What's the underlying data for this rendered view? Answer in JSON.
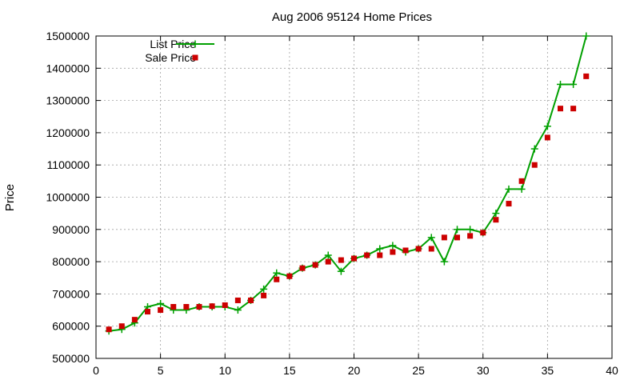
{
  "chart_data": {
    "type": "line",
    "title": "Aug 2006 95124 Home Prices",
    "xlabel": "",
    "ylabel": "Price",
    "xlim": [
      0,
      40
    ],
    "ylim": [
      500000,
      1500000
    ],
    "xticks": [
      0,
      5,
      10,
      15,
      20,
      25,
      30,
      35,
      40
    ],
    "yticks": [
      500000,
      600000,
      700000,
      800000,
      900000,
      1000000,
      1100000,
      1200000,
      1300000,
      1400000,
      1500000
    ],
    "grid": true,
    "legend": "top-left",
    "series": [
      {
        "name": "List Price",
        "style": "line-with-plus",
        "color": "#00a000",
        "x": [
          1,
          2,
          3,
          4,
          5,
          6,
          7,
          8,
          9,
          10,
          11,
          12,
          13,
          14,
          15,
          16,
          17,
          18,
          19,
          20,
          21,
          22,
          23,
          24,
          25,
          26,
          27,
          28,
          29,
          30,
          31,
          32,
          33,
          34,
          35,
          36,
          37,
          38
        ],
        "values": [
          585000,
          590000,
          610000,
          660000,
          670000,
          650000,
          650000,
          660000,
          660000,
          660000,
          650000,
          680000,
          715000,
          765000,
          755000,
          780000,
          790000,
          820000,
          770000,
          810000,
          820000,
          840000,
          850000,
          830000,
          840000,
          875000,
          800000,
          900000,
          900000,
          890000,
          950000,
          1025000,
          1025000,
          1150000,
          1220000,
          1350000,
          1350000,
          1500000
        ]
      },
      {
        "name": "Sale Price",
        "style": "square-markers",
        "color": "#cc0000",
        "x": [
          1,
          2,
          3,
          4,
          5,
          6,
          7,
          8,
          9,
          10,
          11,
          12,
          13,
          14,
          15,
          16,
          17,
          18,
          19,
          20,
          21,
          22,
          23,
          24,
          25,
          26,
          27,
          28,
          29,
          30,
          31,
          32,
          33,
          34,
          35,
          36,
          37,
          38
        ],
        "values": [
          590000,
          600000,
          620000,
          645000,
          650000,
          660000,
          660000,
          660000,
          662000,
          665000,
          680000,
          680000,
          695000,
          745000,
          755000,
          780000,
          790000,
          800000,
          805000,
          810000,
          820000,
          820000,
          830000,
          835000,
          840000,
          840000,
          875000,
          875000,
          880000,
          890000,
          930000,
          980000,
          1050000,
          1100000,
          1185000,
          1275000,
          1275000,
          1375000
        ]
      }
    ]
  }
}
